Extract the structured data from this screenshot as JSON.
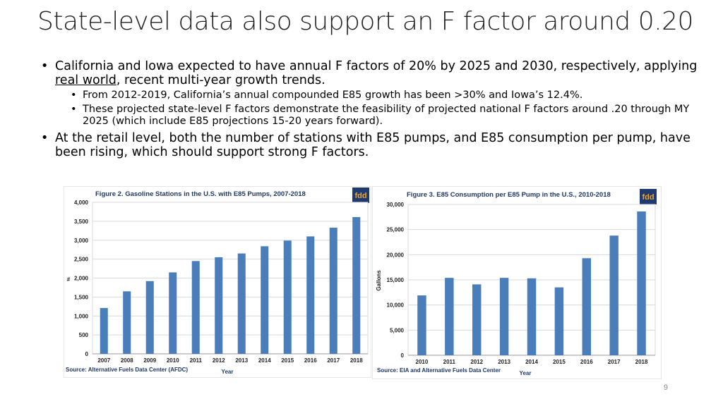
{
  "slide": {
    "title": "State-level data also support an F factor around 0.20",
    "bullet1": {
      "pre": "California and Iowa expected to have annual F factors of 20% by 2025 and 2030, respectively, applying ",
      "underlined": "real world",
      "post": ", recent multi-year growth trends."
    },
    "sub1": "From 2012-2019, California’s annual compounded E85 growth has been >30% and Iowa’s 12.4%.",
    "sub2": "These projected state-level F factors demonstrate the feasibility of projected national F factors around .20 through MY 2025 (which include E85 projections 15-20 years forward).",
    "bullet2": "At the retail level, both the number of stations with E85 pumps, and E85 consumption per pump, have been rising, which should support strong F factors.",
    "page_number": "9"
  },
  "colors": {
    "bar": "#4a7ebb",
    "title_text": "#1f3864",
    "logo_bg": "#1f3a6e",
    "logo_text": "#f5a623"
  },
  "chart_data": [
    {
      "type": "bar",
      "title": "Figure  2. Gasoline  Stations  in the U.S. with E85 Pumps, 2007-2018",
      "logo": "fdd",
      "ylabel": "#",
      "xlabel": "Year",
      "source": "Source: Alternative Fuels Data Center (AFDC)",
      "categories": [
        "2007",
        "2008",
        "2009",
        "2010",
        "2011",
        "2012",
        "2013",
        "2014",
        "2015",
        "2016",
        "2017",
        "2018"
      ],
      "values": [
        1210,
        1650,
        1920,
        2150,
        2450,
        2550,
        2650,
        2840,
        2990,
        3100,
        3330,
        3610
      ],
      "ylim": [
        0,
        4000
      ],
      "yticks": [
        0,
        500,
        1000,
        1500,
        2000,
        2500,
        3000,
        3500,
        4000
      ],
      "ytick_labels": [
        "0",
        "500",
        "1,000",
        "1,500",
        "2,000",
        "2,500",
        "3,000",
        "3,500",
        "4,000"
      ],
      "grid": true
    },
    {
      "type": "bar",
      "title": "Figure  3. E85 Consumption  per E85 Pump in the U.S., 2010-2018",
      "logo": "fdd",
      "ylabel": "Gallons",
      "xlabel": "Year",
      "source": "Source: EIA and Alternative Fuels Data Center",
      "categories": [
        "2010",
        "2011",
        "2012",
        "2013",
        "2014",
        "2015",
        "2016",
        "2017",
        "2018"
      ],
      "values": [
        11900,
        15400,
        14100,
        15400,
        15300,
        13500,
        19300,
        23800,
        28600
      ],
      "ylim": [
        0,
        30000
      ],
      "yticks": [
        0,
        5000,
        10000,
        15000,
        20000,
        25000,
        30000
      ],
      "ytick_labels": [
        "0",
        "5,000",
        "10,000",
        "15,000",
        "20,000",
        "25,000",
        "30,000"
      ],
      "grid": true
    }
  ]
}
